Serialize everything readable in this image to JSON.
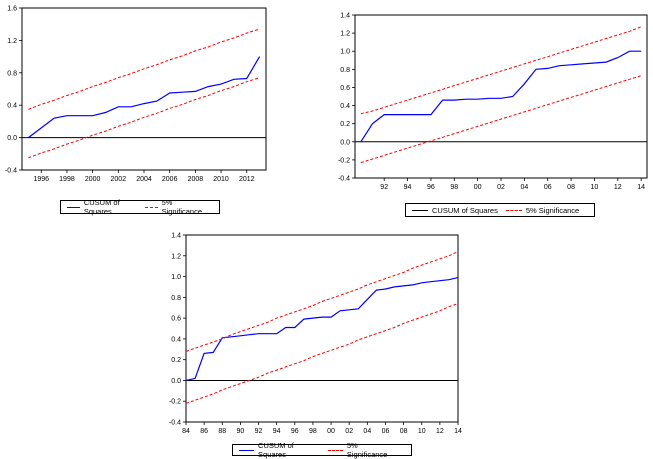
{
  "chart_data": [
    {
      "type": "line",
      "title": "",
      "xlabel": "",
      "ylabel": "",
      "x": [
        1995,
        1996,
        1997,
        1998,
        1999,
        2000,
        2001,
        2002,
        2003,
        2004,
        2005,
        2006,
        2007,
        2008,
        2009,
        2010,
        2011,
        2012,
        2013
      ],
      "xlim": [
        1994.5,
        2013.5
      ],
      "ylim": [
        -0.4,
        1.6
      ],
      "yticks": [
        -0.4,
        0.0,
        0.4,
        0.8,
        1.2,
        1.6
      ],
      "ytick_labels": [
        "-0.4",
        "0.0",
        "0.4",
        "0.8",
        "1.2",
        "1.6"
      ],
      "xticks": [
        1996,
        1998,
        2000,
        2002,
        2004,
        2006,
        2008,
        2010,
        2012
      ],
      "xtick_labels": [
        "1996",
        "1998",
        "2000",
        "2002",
        "2004",
        "2006",
        "2008",
        "2010",
        "2012"
      ],
      "grid": false,
      "legend_position": "bottom",
      "series": [
        {
          "name": "CUSUM of Squares",
          "color": "#0000ff",
          "style": "solid",
          "values": [
            0.0,
            0.12,
            0.24,
            0.27,
            0.27,
            0.27,
            0.31,
            0.38,
            0.38,
            0.42,
            0.45,
            0.55,
            0.56,
            0.57,
            0.63,
            0.66,
            0.72,
            0.73,
            1.0
          ]
        },
        {
          "name": "5% Significance",
          "color": "#ff0000",
          "style": "dashed",
          "values": [
            0.35,
            0.41,
            0.46,
            0.52,
            0.57,
            0.63,
            0.68,
            0.74,
            0.79,
            0.85,
            0.9,
            0.96,
            1.01,
            1.07,
            1.12,
            1.18,
            1.23,
            1.29,
            1.34
          ]
        },
        {
          "name": "",
          "color": "#ff0000",
          "style": "dashed",
          "values": [
            -0.25,
            -0.19,
            -0.14,
            -0.08,
            -0.03,
            0.03,
            0.08,
            0.14,
            0.19,
            0.25,
            0.3,
            0.36,
            0.41,
            0.47,
            0.52,
            0.58,
            0.63,
            0.69,
            0.74
          ]
        }
      ]
    },
    {
      "type": "line",
      "title": "",
      "xlabel": "",
      "ylabel": "",
      "x": [
        1990,
        1991,
        1992,
        1993,
        1994,
        1995,
        1996,
        1997,
        1998,
        1999,
        2000,
        2001,
        2002,
        2003,
        2004,
        2005,
        2006,
        2007,
        2008,
        2009,
        2010,
        2011,
        2012,
        2013,
        2014
      ],
      "xlim": [
        1989.5,
        2014.5
      ],
      "ylim": [
        -0.4,
        1.4
      ],
      "yticks": [
        -0.4,
        -0.2,
        0.0,
        0.2,
        0.4,
        0.6,
        0.8,
        1.0,
        1.2,
        1.4
      ],
      "ytick_labels": [
        "-0.4",
        "-0.2",
        "0.0",
        "0.2",
        "0.4",
        "0.6",
        "0.8",
        "1.0",
        "1.2",
        "1.4"
      ],
      "xticks": [
        1992,
        1994,
        1996,
        1998,
        2000,
        2002,
        2004,
        2006,
        2008,
        2010,
        2012,
        2014
      ],
      "xtick_labels": [
        "92",
        "94",
        "96",
        "98",
        "00",
        "02",
        "04",
        "06",
        "08",
        "10",
        "12",
        "14"
      ],
      "grid": false,
      "legend_position": "bottom",
      "series": [
        {
          "name": "CUSUM of Squares",
          "color": "#0000ff",
          "style": "solid",
          "values": [
            0.0,
            0.2,
            0.3,
            0.3,
            0.3,
            0.3,
            0.3,
            0.46,
            0.46,
            0.47,
            0.47,
            0.48,
            0.48,
            0.5,
            0.64,
            0.8,
            0.81,
            0.84,
            0.85,
            0.86,
            0.87,
            0.88,
            0.93,
            1.0,
            1.0
          ]
        },
        {
          "name": "5% Significance",
          "color": "#ff0000",
          "style": "dashed",
          "values": [
            0.31,
            0.34,
            0.38,
            0.42,
            0.46,
            0.5,
            0.54,
            0.58,
            0.62,
            0.66,
            0.7,
            0.74,
            0.78,
            0.82,
            0.86,
            0.9,
            0.94,
            0.98,
            1.02,
            1.06,
            1.1,
            1.14,
            1.18,
            1.22,
            1.27
          ]
        },
        {
          "name": "",
          "color": "#ff0000",
          "style": "dashed",
          "values": [
            -0.23,
            -0.19,
            -0.15,
            -0.11,
            -0.07,
            -0.03,
            0.01,
            0.05,
            0.09,
            0.13,
            0.17,
            0.21,
            0.25,
            0.29,
            0.33,
            0.37,
            0.41,
            0.45,
            0.49,
            0.53,
            0.57,
            0.61,
            0.65,
            0.69,
            0.73
          ]
        }
      ]
    },
    {
      "type": "line",
      "title": "",
      "xlabel": "",
      "ylabel": "",
      "x": [
        1984,
        1985,
        1986,
        1987,
        1988,
        1989,
        1990,
        1991,
        1992,
        1993,
        1994,
        1995,
        1996,
        1997,
        1998,
        1999,
        2000,
        2001,
        2002,
        2003,
        2004,
        2005,
        2006,
        2007,
        2008,
        2009,
        2010,
        2011,
        2012,
        2013,
        2014
      ],
      "xlim": [
        1984,
        2014
      ],
      "ylim": [
        -0.4,
        1.4
      ],
      "yticks": [
        -0.4,
        -0.2,
        0.0,
        0.2,
        0.4,
        0.6,
        0.8,
        1.0,
        1.2,
        1.4
      ],
      "ytick_labels": [
        "-0.4",
        "-0.2",
        "0.0",
        "0.2",
        "0.4",
        "0.6",
        "0.8",
        "1.0",
        "1.2",
        "1.4"
      ],
      "xticks": [
        1984,
        1986,
        1988,
        1990,
        1992,
        1994,
        1996,
        1998,
        2000,
        2002,
        2004,
        2006,
        2008,
        2010,
        2012,
        2014
      ],
      "xtick_labels": [
        "84",
        "86",
        "88",
        "90",
        "92",
        "94",
        "96",
        "98",
        "00",
        "02",
        "04",
        "06",
        "08",
        "10",
        "12",
        "14"
      ],
      "grid": false,
      "legend_position": "bottom",
      "series": [
        {
          "name": "CUSUM of Squares",
          "color": "#0000ff",
          "style": "solid",
          "values": [
            0.0,
            0.02,
            0.26,
            0.27,
            0.41,
            0.42,
            0.43,
            0.44,
            0.45,
            0.45,
            0.45,
            0.51,
            0.51,
            0.59,
            0.6,
            0.61,
            0.61,
            0.67,
            0.68,
            0.69,
            0.78,
            0.87,
            0.88,
            0.9,
            0.91,
            0.92,
            0.94,
            0.95,
            0.96,
            0.97,
            0.99
          ]
        },
        {
          "name": "5% Significance",
          "color": "#ff0000",
          "style": "dashed",
          "values": [
            0.28,
            0.31,
            0.34,
            0.37,
            0.4,
            0.44,
            0.47,
            0.5,
            0.53,
            0.56,
            0.6,
            0.63,
            0.66,
            0.69,
            0.72,
            0.76,
            0.79,
            0.82,
            0.85,
            0.88,
            0.92,
            0.95,
            0.98,
            1.01,
            1.04,
            1.08,
            1.11,
            1.14,
            1.17,
            1.2,
            1.24
          ]
        },
        {
          "name": "",
          "color": "#ff0000",
          "style": "dashed",
          "values": [
            -0.22,
            -0.19,
            -0.16,
            -0.13,
            -0.09,
            -0.06,
            -0.03,
            0.0,
            0.03,
            0.07,
            0.1,
            0.13,
            0.16,
            0.19,
            0.23,
            0.26,
            0.29,
            0.32,
            0.35,
            0.39,
            0.42,
            0.45,
            0.48,
            0.51,
            0.55,
            0.58,
            0.61,
            0.64,
            0.67,
            0.71,
            0.74
          ]
        }
      ]
    }
  ]
}
